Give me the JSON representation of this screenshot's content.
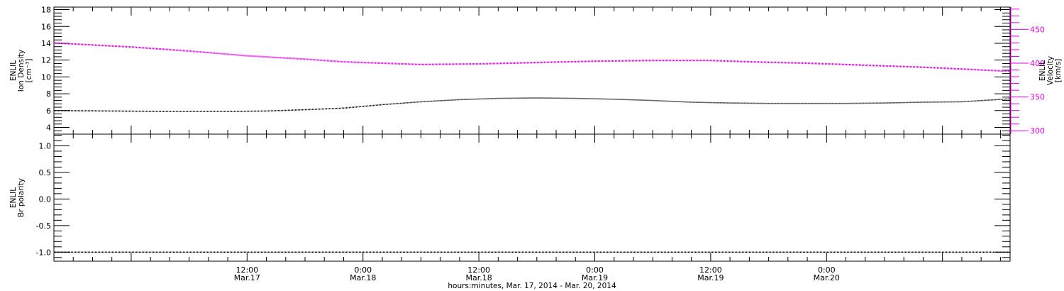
{
  "chart_data": {
    "type": "line",
    "xlabel": "hours:minutes, Mar. 17, 2014 - Mar. 20, 2014",
    "x_range_hours": [
      -8,
      91
    ],
    "x_ticks": [
      {
        "hour": 12,
        "time": "12:00",
        "date": "Mar.17"
      },
      {
        "hour": 24,
        "time": "0:00",
        "date": "Mar.18"
      },
      {
        "hour": 36,
        "time": "12:00",
        "date": "Mar.18"
      },
      {
        "hour": 48,
        "time": "0:00",
        "date": "Mar.19"
      },
      {
        "hour": 60,
        "time": "12:00",
        "date": "Mar.19"
      },
      {
        "hour": 72,
        "time": "0:00",
        "date": "Mar.20"
      }
    ],
    "panels": [
      {
        "id": "top",
        "ylabel": [
          "ENLIL",
          "Ion Density",
          "[cm⁻³]"
        ],
        "ylim": [
          3.2,
          18.3
        ],
        "yticks": [
          4,
          6,
          8,
          10,
          12,
          14,
          16,
          18
        ],
        "ytick_labels": [
          "4",
          "6",
          "8",
          "10",
          "12",
          "14",
          "16",
          "18"
        ],
        "right_axis": {
          "ylabel": [
            "ENLIL",
            "Velocity",
            "[km/s]"
          ],
          "ylim": [
            295,
            483
          ],
          "yticks": [
            300,
            350,
            400,
            450
          ],
          "ytick_labels": [
            "300",
            "350",
            "400",
            "450"
          ],
          "color": "#e600e6"
        },
        "series": [
          {
            "axis": "left",
            "color": "#000000",
            "points": [
              [
                -8,
                6.0
              ],
              [
                -2,
                5.95
              ],
              [
                4,
                5.9
              ],
              [
                10,
                5.9
              ],
              [
                14,
                5.95
              ],
              [
                18,
                6.1
              ],
              [
                22,
                6.3
              ],
              [
                26,
                6.7
              ],
              [
                30,
                7.05
              ],
              [
                34,
                7.3
              ],
              [
                38,
                7.45
              ],
              [
                42,
                7.5
              ],
              [
                46,
                7.45
              ],
              [
                50,
                7.35
              ],
              [
                54,
                7.2
              ],
              [
                58,
                7.0
              ],
              [
                62,
                6.9
              ],
              [
                66,
                6.85
              ],
              [
                70,
                6.85
              ],
              [
                74,
                6.85
              ],
              [
                78,
                6.9
              ],
              [
                82,
                7.0
              ],
              [
                86,
                7.05
              ],
              [
                91,
                7.4
              ]
            ]
          },
          {
            "axis": "right",
            "color": "#e600e6",
            "points": [
              [
                -8,
                430
              ],
              [
                0,
                424
              ],
              [
                6,
                418
              ],
              [
                12,
                411
              ],
              [
                18,
                406
              ],
              [
                22,
                402
              ],
              [
                26,
                400
              ],
              [
                30,
                398
              ],
              [
                36,
                399
              ],
              [
                42,
                401
              ],
              [
                48,
                403
              ],
              [
                54,
                404
              ],
              [
                60,
                404
              ],
              [
                64,
                402
              ],
              [
                70,
                400
              ],
              [
                76,
                397
              ],
              [
                82,
                394
              ],
              [
                91,
                388
              ]
            ]
          }
        ]
      },
      {
        "id": "bottom",
        "ylabel": [
          "ENLIL",
          "Br polarity"
        ],
        "ylim": [
          -1.17,
          1.22
        ],
        "yticks": [
          -1.0,
          -0.5,
          0.0,
          0.5,
          1.0
        ],
        "ytick_labels": [
          "-1.0",
          "-0.5",
          "0.0",
          "0.5",
          "1.0"
        ],
        "series": [
          {
            "axis": "left",
            "color": "#000000",
            "points": [
              [
                -8,
                -1.0
              ],
              [
                91,
                -1.0
              ]
            ]
          }
        ]
      }
    ]
  }
}
